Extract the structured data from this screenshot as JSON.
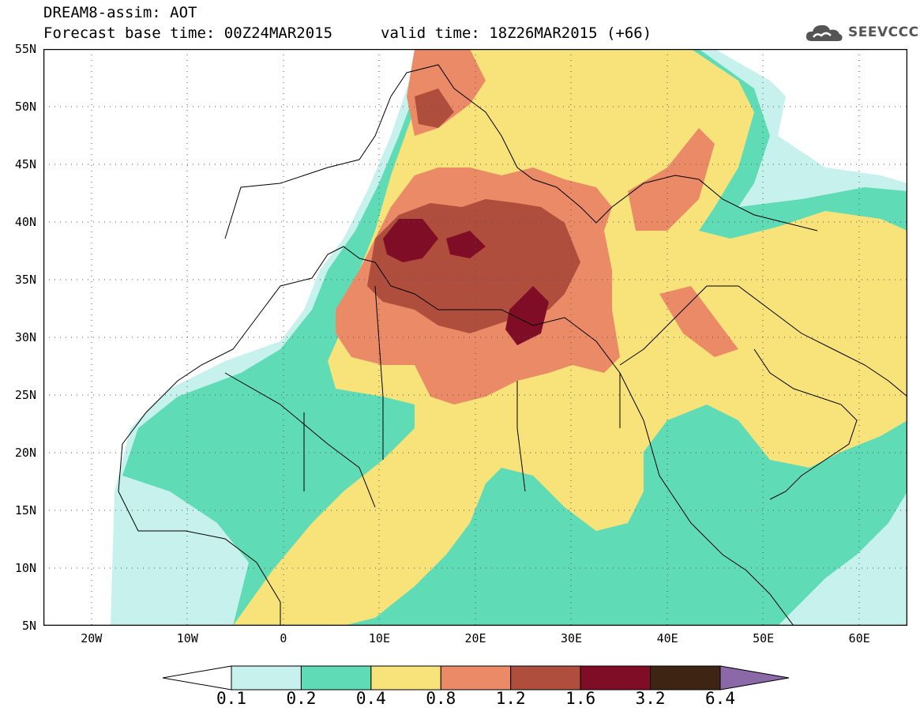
{
  "header": {
    "model_line": "DREAM8-assim: AOT",
    "base_time_line": "Forecast base time: 00Z24MAR2015",
    "valid_time_line": "valid time: 18Z26MAR2015 (+66)"
  },
  "logo": {
    "text": "SEEVCCC",
    "icon": "cloud-icon"
  },
  "map": {
    "lat_labels": [
      "55N",
      "50N",
      "45N",
      "40N",
      "35N",
      "30N",
      "25N",
      "20N",
      "15N",
      "10N",
      "5N"
    ],
    "lon_labels": [
      "20W",
      "10W",
      "0",
      "10E",
      "20E",
      "30E",
      "40E",
      "50E",
      "60E"
    ],
    "lon_range": [
      -25,
      65
    ],
    "lat_range": [
      5,
      55
    ]
  },
  "colorbar": {
    "ticks": [
      "0.1",
      "0.2",
      "0.4",
      "0.8",
      "1.2",
      "1.6",
      "3.2",
      "6.4"
    ],
    "colors": [
      "#ffffff",
      "#c6f1ec",
      "#5fdcb6",
      "#f8e27a",
      "#ea8a66",
      "#b04e3e",
      "#800d26",
      "#3e2412",
      "#8b68a8"
    ]
  }
}
